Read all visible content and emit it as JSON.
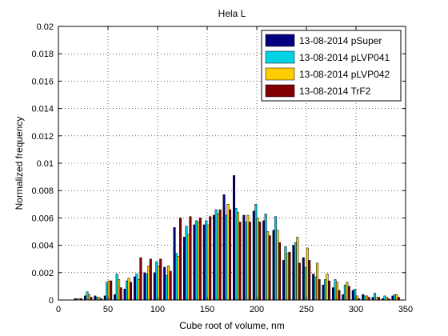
{
  "chart_data": {
    "type": "bar",
    "title": "Hela L",
    "xlabel": "Cube root of volume, nm",
    "ylabel": "Normalized frequency",
    "xlim": [
      0,
      350
    ],
    "ylim": [
      0,
      0.02
    ],
    "xticks": [
      0,
      50,
      100,
      150,
      200,
      250,
      300,
      350
    ],
    "yticks": [
      0,
      0.002,
      0.004,
      0.006,
      0.008,
      0.01,
      0.012,
      0.014,
      0.016,
      0.018,
      0.02
    ],
    "xtick_labels": [
      "0",
      "50",
      "100",
      "150",
      "200",
      "250",
      "300",
      "350"
    ],
    "ytick_labels": [
      "0",
      "0.002",
      "0.004",
      "0.006",
      "0.008",
      "0.01",
      "0.012",
      "0.014",
      "0.016",
      "0.018",
      "0.02"
    ],
    "grid": true,
    "legend_position": "top-right",
    "bin_width": 10,
    "x": [
      20,
      30,
      40,
      50,
      60,
      70,
      80,
      90,
      100,
      110,
      120,
      130,
      140,
      150,
      160,
      170,
      180,
      190,
      200,
      210,
      220,
      230,
      240,
      250,
      260,
      270,
      280,
      290,
      300,
      310,
      320,
      330,
      340
    ],
    "series": [
      {
        "name": "13-08-2014 pSuper",
        "color": "#00007F",
        "values": [
          0.0001,
          0.0003,
          0.0003,
          0.0003,
          0.0004,
          0.0008,
          0.0017,
          0.002,
          0.002,
          0.0024,
          0.0053,
          0.0046,
          0.0055,
          0.0055,
          0.0062,
          0.0077,
          0.0091,
          0.0062,
          0.0065,
          0.0058,
          0.0051,
          0.0029,
          0.004,
          0.0031,
          0.0019,
          0.0011,
          0.0009,
          0.0004,
          0.0007,
          0.0004,
          0.0002,
          0.0001,
          0.0003
        ]
      },
      {
        "name": "13-08-2014 pLVP041",
        "color": "#00D2E6",
        "values": [
          0.0001,
          0.0006,
          0.0002,
          0.0013,
          0.0019,
          0.0014,
          0.0019,
          0.0019,
          0.0028,
          0.0018,
          0.0034,
          0.0054,
          0.0058,
          0.0058,
          0.0066,
          0.0062,
          0.0067,
          0.0057,
          0.007,
          0.0063,
          0.0061,
          0.0039,
          0.0042,
          0.0024,
          0.0017,
          0.0015,
          0.0015,
          0.0011,
          0.0008,
          0.0003,
          0.0005,
          0.0003,
          0.0004
        ]
      },
      {
        "name": "13-08-2014 pLVP042",
        "color": "#FFCC00",
        "values": [
          0.0001,
          0.0004,
          0.0002,
          0.0014,
          0.0015,
          0.0016,
          0.0015,
          0.0025,
          0.0025,
          0.0025,
          0.0032,
          0.0048,
          0.0057,
          0.0055,
          0.0063,
          0.007,
          0.0064,
          0.0062,
          0.006,
          0.005,
          0.0051,
          0.0034,
          0.0046,
          0.0038,
          0.0027,
          0.0019,
          0.0013,
          0.0013,
          0.0003,
          0.0003,
          0.0002,
          0.0002,
          0.0004
        ]
      },
      {
        "name": "13-08-2014 TrF2",
        "color": "#800000",
        "values": [
          0.0001,
          0.0002,
          0.0001,
          0.0014,
          0.0009,
          0.0013,
          0.0031,
          0.003,
          0.003,
          0.0021,
          0.006,
          0.0061,
          0.006,
          0.0061,
          0.0066,
          0.0066,
          0.0057,
          0.0057,
          0.0057,
          0.0047,
          0.0042,
          0.0035,
          0.0027,
          0.0029,
          0.0015,
          0.0014,
          0.0007,
          0.001,
          0.0001,
          0.0002,
          0.0002,
          0.0001,
          0.0002
        ]
      }
    ]
  }
}
